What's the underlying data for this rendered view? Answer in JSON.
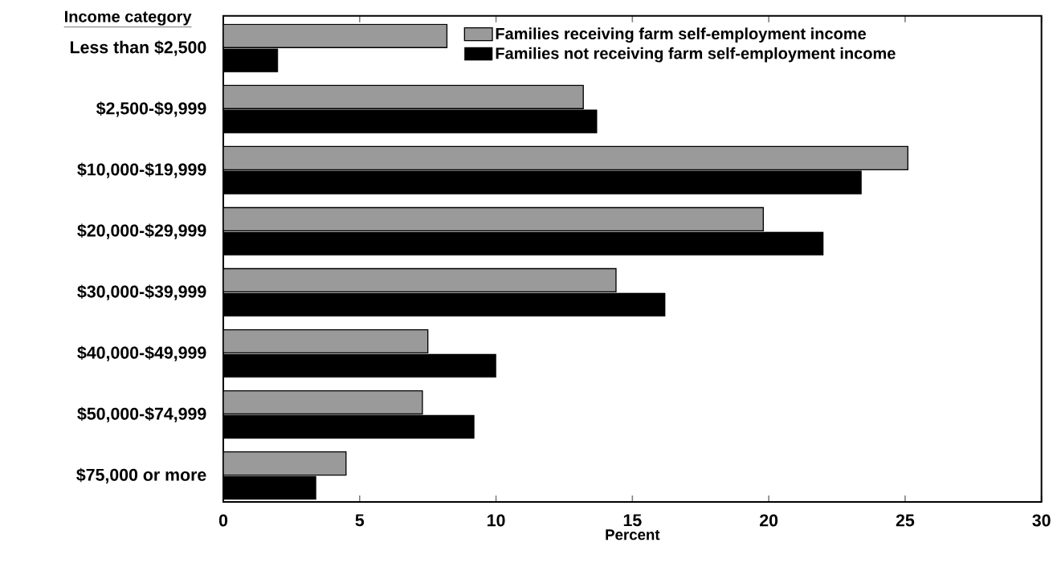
{
  "chart_data": {
    "type": "bar",
    "orientation": "horizontal",
    "ylabel": "Income category",
    "xlabel": "Percent",
    "categories": [
      "Less than $2,500",
      "$2,500-$9,999",
      "$10,000-$19,999",
      "$20,000-$29,999",
      "$30,000-$39,999",
      "$40,000-$49,999",
      "$50,000-$74,999",
      "$75,000 or more"
    ],
    "series": [
      {
        "name": "Families receiving farm self-employment income",
        "color": "#9a9a9a",
        "values": [
          8.2,
          13.2,
          25.1,
          19.8,
          14.4,
          7.5,
          7.3,
          4.5
        ]
      },
      {
        "name": "Families not receiving farm self-employment income",
        "color": "#000000",
        "values": [
          2.0,
          13.7,
          23.4,
          22.0,
          16.2,
          10.0,
          9.2,
          3.4
        ]
      }
    ],
    "xlim": [
      0,
      30
    ],
    "xticks": [
      0,
      5,
      10,
      15,
      20,
      25,
      30
    ],
    "legend": "top"
  }
}
